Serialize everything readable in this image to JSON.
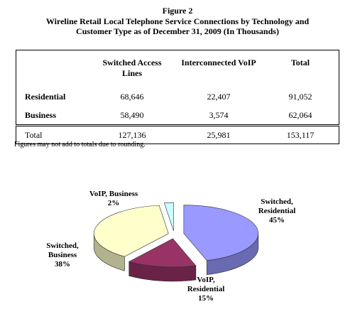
{
  "figure": "Figure 2",
  "title": "Wireline Retail Local Telephone Service Connections by Technology and Customer Type as of December 31, 2009 (In Thousands)",
  "table": {
    "columns": [
      "Switched Access Lines",
      "Interconnected VoIP",
      "Total"
    ],
    "rows": [
      [
        "Residential",
        "68,646",
        "22,407",
        "91,052"
      ],
      [
        "Business",
        "58,490",
        "3,574",
        "62,064"
      ]
    ],
    "total": [
      "Total",
      "127,136",
      "25,981",
      "153,117"
    ]
  },
  "note": "Figures may not add to totals due to rounding.",
  "chart_data": {
    "type": "pie",
    "categories": [
      "Switched, Residential",
      "VoIP, Residential",
      "Switched, Business",
      "VoIP, Business"
    ],
    "values": [
      45,
      15,
      38,
      2
    ],
    "value_labels": [
      "45%",
      "15%",
      "38%",
      "2%"
    ],
    "colors": [
      "#9999ff",
      "#993366",
      "#ffffcc",
      "#ccffff"
    ]
  }
}
